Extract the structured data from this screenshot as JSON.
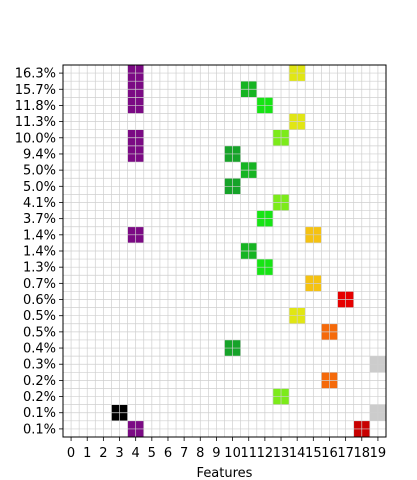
{
  "chart_data": {
    "type": "heatmap",
    "title": "",
    "xlabel": "Features",
    "ylabel": "",
    "x_ticks": [
      "0",
      "1",
      "2",
      "3",
      "4",
      "5",
      "6",
      "7",
      "8",
      "9",
      "10",
      "11",
      "12",
      "13",
      "14",
      "15",
      "16",
      "17",
      "18",
      "19"
    ],
    "y_ticks": [
      "16.3%",
      "15.7%",
      "11.8%",
      "11.3%",
      "10.0%",
      "9.4%",
      "5.0%",
      "5.0%",
      "4.1%",
      "3.7%",
      "1.4%",
      "1.4%",
      "1.3%",
      "0.7%",
      "0.6%",
      "0.5%",
      "0.5%",
      "0.4%",
      "0.3%",
      "0.2%",
      "0.2%",
      "0.1%",
      "0.1%"
    ],
    "grid": true,
    "legend": "none",
    "cells": [
      {
        "row": 0,
        "feature": 4,
        "color": "#7b0a84"
      },
      {
        "row": 0,
        "feature": 14,
        "color": "#e1e614"
      },
      {
        "row": 1,
        "feature": 4,
        "color": "#7b0a84"
      },
      {
        "row": 1,
        "feature": 11,
        "color": "#16b422"
      },
      {
        "row": 2,
        "feature": 4,
        "color": "#7b0a84"
      },
      {
        "row": 2,
        "feature": 12,
        "color": "#16e414"
      },
      {
        "row": 3,
        "feature": 14,
        "color": "#e1e614"
      },
      {
        "row": 4,
        "feature": 4,
        "color": "#7b0a84"
      },
      {
        "row": 4,
        "feature": 13,
        "color": "#7ceb1a"
      },
      {
        "row": 5,
        "feature": 4,
        "color": "#7b0a84"
      },
      {
        "row": 5,
        "feature": 10,
        "color": "#16a329"
      },
      {
        "row": 6,
        "feature": 11,
        "color": "#16b422"
      },
      {
        "row": 7,
        "feature": 10,
        "color": "#16a329"
      },
      {
        "row": 8,
        "feature": 13,
        "color": "#7ceb1a"
      },
      {
        "row": 9,
        "feature": 12,
        "color": "#16e414"
      },
      {
        "row": 10,
        "feature": 4,
        "color": "#7b0a84"
      },
      {
        "row": 10,
        "feature": 15,
        "color": "#f5c211"
      },
      {
        "row": 11,
        "feature": 11,
        "color": "#16b422"
      },
      {
        "row": 12,
        "feature": 12,
        "color": "#16e414"
      },
      {
        "row": 13,
        "feature": 15,
        "color": "#f5c211"
      },
      {
        "row": 14,
        "feature": 17,
        "color": "#e60000"
      },
      {
        "row": 15,
        "feature": 14,
        "color": "#e1e614"
      },
      {
        "row": 16,
        "feature": 16,
        "color": "#f56a0a"
      },
      {
        "row": 17,
        "feature": 10,
        "color": "#16a329"
      },
      {
        "row": 18,
        "feature": 19,
        "color": "#cccccc"
      },
      {
        "row": 19,
        "feature": 16,
        "color": "#f56a0a"
      },
      {
        "row": 20,
        "feature": 13,
        "color": "#7ceb1a"
      },
      {
        "row": 21,
        "feature": 3,
        "color": "#000000"
      },
      {
        "row": 21,
        "feature": 19,
        "color": "#cccccc"
      },
      {
        "row": 22,
        "feature": 4,
        "color": "#7b0a84"
      },
      {
        "row": 22,
        "feature": 18,
        "color": "#c80000"
      }
    ]
  }
}
